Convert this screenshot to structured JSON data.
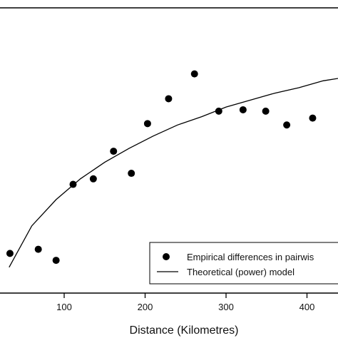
{
  "chart_data": {
    "type": "scatter",
    "title": "",
    "xlabel": "Distance (Kilometres)",
    "ylabel": "",
    "xlim": [
      -40,
      474
    ],
    "x_ticks": [
      100,
      200,
      300,
      400
    ],
    "grid": false,
    "legend_placement": "bottom-right",
    "series": [
      {
        "name": "Empirical differences in pairwis",
        "kind": "points",
        "color": "#000000",
        "points": [
          {
            "x": 33,
            "y": 0.22
          },
          {
            "x": 68,
            "y": 0.25
          },
          {
            "x": 90,
            "y": 0.17
          },
          {
            "x": 111,
            "y": 0.72
          },
          {
            "x": 136,
            "y": 0.76
          },
          {
            "x": 161,
            "y": 0.96
          },
          {
            "x": 183,
            "y": 0.8
          },
          {
            "x": 203,
            "y": 1.16
          },
          {
            "x": 229,
            "y": 1.34
          },
          {
            "x": 261,
            "y": 1.52
          },
          {
            "x": 291,
            "y": 1.25
          },
          {
            "x": 321,
            "y": 1.26
          },
          {
            "x": 349,
            "y": 1.25
          },
          {
            "x": 375,
            "y": 1.15
          },
          {
            "x": 407,
            "y": 1.2
          }
        ]
      },
      {
        "name": "Theoretical (power) model",
        "kind": "line",
        "color": "#000000",
        "points": [
          {
            "x": 32,
            "y": 0.12
          },
          {
            "x": 60,
            "y": 0.42
          },
          {
            "x": 90,
            "y": 0.61
          },
          {
            "x": 120,
            "y": 0.76
          },
          {
            "x": 150,
            "y": 0.88
          },
          {
            "x": 180,
            "y": 0.98
          },
          {
            "x": 210,
            "y": 1.07
          },
          {
            "x": 240,
            "y": 1.15
          },
          {
            "x": 270,
            "y": 1.21
          },
          {
            "x": 300,
            "y": 1.28
          },
          {
            "x": 330,
            "y": 1.33
          },
          {
            "x": 360,
            "y": 1.38
          },
          {
            "x": 390,
            "y": 1.42
          },
          {
            "x": 420,
            "y": 1.47
          },
          {
            "x": 474,
            "y": 1.52
          }
        ]
      }
    ],
    "ylim": [
      0,
      1.9
    ]
  }
}
